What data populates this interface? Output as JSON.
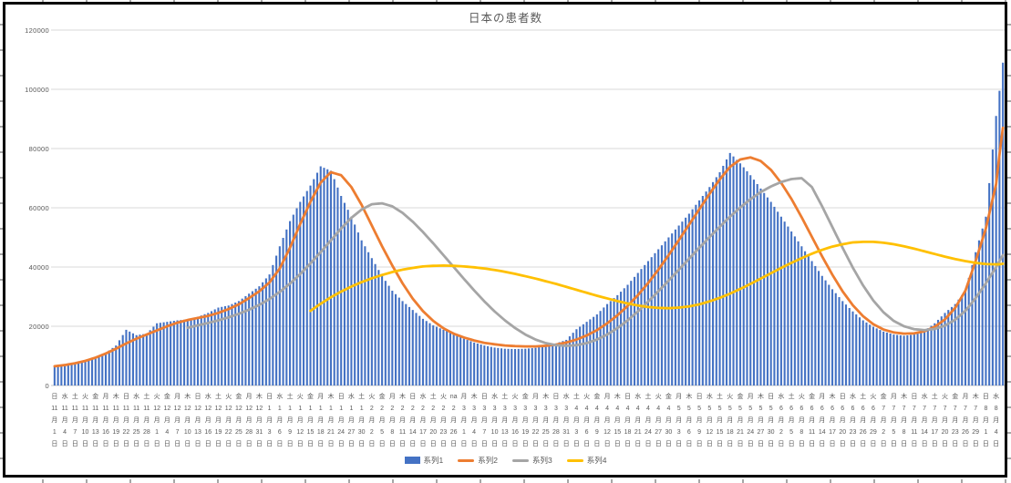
{
  "chart_data": {
    "type": "combo",
    "title": "日本の患者数",
    "legend_position": "bottom",
    "grid": true,
    "y_axis": {
      "min": 0,
      "max": 120000,
      "step": 20000,
      "tick_labels": [
        "0",
        "20000",
        "40000",
        "60000",
        "80000",
        "100000",
        "120000"
      ]
    },
    "x_axis": {
      "tick_interval_days": 3,
      "date_suffixes": [
        "月",
        "日"
      ],
      "ticks": [
        [
          "日",
          11,
          1
        ],
        [
          "水",
          11,
          4
        ],
        [
          "土",
          11,
          7
        ],
        [
          "火",
          11,
          10
        ],
        [
          "金",
          11,
          13
        ],
        [
          "月",
          11,
          16
        ],
        [
          "木",
          11,
          19
        ],
        [
          "日",
          11,
          22
        ],
        [
          "水",
          11,
          25
        ],
        [
          "土",
          11,
          28
        ],
        [
          "火",
          12,
          1
        ],
        [
          "金",
          12,
          4
        ],
        [
          "月",
          12,
          7
        ],
        [
          "木",
          12,
          10
        ],
        [
          "日",
          12,
          13
        ],
        [
          "水",
          12,
          16
        ],
        [
          "土",
          12,
          19
        ],
        [
          "火",
          12,
          22
        ],
        [
          "金",
          12,
          25
        ],
        [
          "月",
          12,
          28
        ],
        [
          "木",
          12,
          31
        ],
        [
          "日",
          1,
          3
        ],
        [
          "水",
          1,
          6
        ],
        [
          "土",
          1,
          9
        ],
        [
          "火",
          1,
          12
        ],
        [
          "金",
          1,
          15
        ],
        [
          "月",
          1,
          18
        ],
        [
          "木",
          1,
          21
        ],
        [
          "日",
          1,
          24
        ],
        [
          "水",
          1,
          27
        ],
        [
          "土",
          1,
          30
        ],
        [
          "火",
          2,
          2
        ],
        [
          "金",
          2,
          5
        ],
        [
          "月",
          2,
          8
        ],
        [
          "木",
          2,
          11
        ],
        [
          "日",
          2,
          14
        ],
        [
          "水",
          2,
          17
        ],
        [
          "土",
          2,
          20
        ],
        [
          "火",
          2,
          23
        ],
        [
          "na",
          2,
          26
        ],
        [
          "月",
          3,
          1
        ],
        [
          "木",
          3,
          4
        ],
        [
          "日",
          3,
          7
        ],
        [
          "水",
          3,
          10
        ],
        [
          "土",
          3,
          13
        ],
        [
          "火",
          3,
          16
        ],
        [
          "金",
          3,
          19
        ],
        [
          "月",
          3,
          22
        ],
        [
          "木",
          3,
          25
        ],
        [
          "日",
          3,
          28
        ],
        [
          "水",
          3,
          31
        ],
        [
          "土",
          4,
          3
        ],
        [
          "火",
          4,
          6
        ],
        [
          "金",
          4,
          9
        ],
        [
          "月",
          4,
          12
        ],
        [
          "木",
          4,
          15
        ],
        [
          "日",
          4,
          18
        ],
        [
          "水",
          4,
          21
        ],
        [
          "土",
          4,
          24
        ],
        [
          "火",
          4,
          27
        ],
        [
          "金",
          4,
          30
        ],
        [
          "月",
          5,
          3
        ],
        [
          "木",
          5,
          6
        ],
        [
          "日",
          5,
          9
        ],
        [
          "水",
          5,
          12
        ],
        [
          "土",
          5,
          15
        ],
        [
          "火",
          5,
          18
        ],
        [
          "金",
          5,
          21
        ],
        [
          "月",
          5,
          24
        ],
        [
          "木",
          5,
          27
        ],
        [
          "日",
          5,
          30
        ],
        [
          "水",
          6,
          2
        ],
        [
          "土",
          6,
          5
        ],
        [
          "火",
          6,
          8
        ],
        [
          "金",
          6,
          11
        ],
        [
          "月",
          6,
          14
        ],
        [
          "木",
          6,
          17
        ],
        [
          "日",
          6,
          20
        ],
        [
          "水",
          6,
          23
        ],
        [
          "土",
          6,
          26
        ],
        [
          "火",
          6,
          29
        ],
        [
          "金",
          7,
          2
        ],
        [
          "月",
          7,
          5
        ],
        [
          "木",
          7,
          8
        ],
        [
          "日",
          7,
          11
        ],
        [
          "水",
          7,
          14
        ],
        [
          "土",
          7,
          17
        ],
        [
          "火",
          7,
          20
        ],
        [
          "金",
          7,
          23
        ],
        [
          "月",
          7,
          26
        ],
        [
          "木",
          7,
          29
        ],
        [
          "日",
          8,
          1
        ],
        [
          "水",
          8,
          4
        ]
      ]
    },
    "series": [
      {
        "name": "系列1",
        "type": "bar",
        "color": "#4472C4",
        "values": [
          6300,
          6600,
          7400,
          8100,
          9300,
          11000,
          13500,
          18800,
          17000,
          17500,
          21000,
          21500,
          22000,
          22300,
          23200,
          24500,
          26300,
          27000,
          28500,
          31000,
          33500,
          37500,
          47000,
          55500,
          62000,
          67500,
          74000,
          72500,
          64000,
          57000,
          49000,
          43000,
          37000,
          32000,
          28500,
          25500,
          22500,
          20300,
          18800,
          17800,
          15800,
          14500,
          13500,
          12800,
          12400,
          12300,
          12400,
          12700,
          13300,
          14200,
          15400,
          19000,
          21500,
          24000,
          27500,
          30500,
          34000,
          38000,
          42000,
          46000,
          50000,
          54000,
          58000,
          62500,
          67000,
          72000,
          78500,
          75000,
          71000,
          66500,
          62000,
          57000,
          52000,
          47000,
          42000,
          37000,
          32500,
          28500,
          25000,
          22000,
          19800,
          18200,
          17200,
          16800,
          17200,
          18500,
          21000,
          24500,
          27500,
          32000,
          45000,
          57000,
          91000
        ],
        "tail": [
          99500,
          109000
        ]
      },
      {
        "name": "系列2",
        "type": "line",
        "color": "#ED7D31",
        "values": [
          6500,
          6900,
          7500,
          8300,
          9400,
          10800,
          12400,
          14200,
          15800,
          17200,
          18600,
          20000,
          21200,
          22100,
          22800,
          23500,
          24500,
          25800,
          27400,
          29500,
          31800,
          34800,
          39500,
          46500,
          54500,
          62000,
          68500,
          72000,
          71000,
          67000,
          61000,
          54000,
          47000,
          40500,
          34500,
          29300,
          25100,
          21800,
          19300,
          17500,
          16200,
          15200,
          14400,
          13900,
          13500,
          13300,
          13200,
          13200,
          13400,
          13800,
          14500,
          15500,
          16900,
          18700,
          21000,
          23700,
          26900,
          30500,
          34600,
          39100,
          44000,
          49100,
          54300,
          59500,
          64700,
          69600,
          73800,
          76300,
          77000,
          75800,
          72800,
          68400,
          63000,
          56800,
          50200,
          43600,
          37400,
          31800,
          27100,
          23400,
          20700,
          18900,
          17900,
          17500,
          17600,
          18300,
          19800,
          22300,
          26200,
          32000,
          42000,
          53000,
          68000
        ],
        "tail": [
          78000,
          87000
        ]
      },
      {
        "name": "系列3",
        "type": "line",
        "color": "#A5A5A5",
        "values": [
          null,
          null,
          null,
          null,
          null,
          null,
          null,
          null,
          null,
          null,
          null,
          null,
          null,
          19500,
          20300,
          21100,
          22000,
          23000,
          24200,
          25600,
          27200,
          29200,
          31600,
          34400,
          37600,
          41200,
          45000,
          49000,
          53000,
          56600,
          59400,
          61200,
          61500,
          60500,
          58300,
          55300,
          51800,
          48000,
          44000,
          40000,
          36000,
          32100,
          28400,
          25000,
          22000,
          19400,
          17200,
          15500,
          14300,
          13600,
          13400,
          13600,
          14300,
          15500,
          17200,
          19400,
          22000,
          25000,
          28300,
          31800,
          35400,
          39100,
          42800,
          46500,
          50100,
          53600,
          57000,
          60100,
          62900,
          65300,
          67200,
          68700,
          69700,
          70000,
          67000,
          60500,
          53500,
          46500,
          39800,
          33800,
          28700,
          24700,
          21800,
          20000,
          19000,
          18700,
          19100,
          20200,
          22200,
          25200,
          29500,
          34500,
          40000
        ],
        "tail": [
          42000,
          44000
        ]
      },
      {
        "name": "系列4",
        "type": "line",
        "color": "#FFC000",
        "values": [
          null,
          null,
          null,
          null,
          null,
          null,
          null,
          null,
          null,
          null,
          null,
          null,
          null,
          null,
          null,
          null,
          null,
          null,
          null,
          null,
          null,
          null,
          null,
          null,
          null,
          25200,
          27600,
          29800,
          31700,
          33400,
          34900,
          36200,
          37300,
          38300,
          39100,
          39700,
          40200,
          40400,
          40500,
          40400,
          40200,
          39900,
          39500,
          39000,
          38400,
          37700,
          36900,
          36100,
          35200,
          34300,
          33300,
          32300,
          31300,
          30300,
          29400,
          28500,
          27700,
          27000,
          26500,
          26200,
          26100,
          26300,
          26700,
          27400,
          28400,
          29600,
          31000,
          32600,
          34300,
          36100,
          37900,
          39700,
          41400,
          43000,
          44500,
          45800,
          46900,
          47700,
          48300,
          48500,
          48500,
          48200,
          47700,
          47000,
          46200,
          45300,
          44400,
          43500,
          42700,
          42000,
          41400,
          41000,
          40900
        ],
        "tail": [
          40900,
          41100
        ]
      }
    ]
  }
}
